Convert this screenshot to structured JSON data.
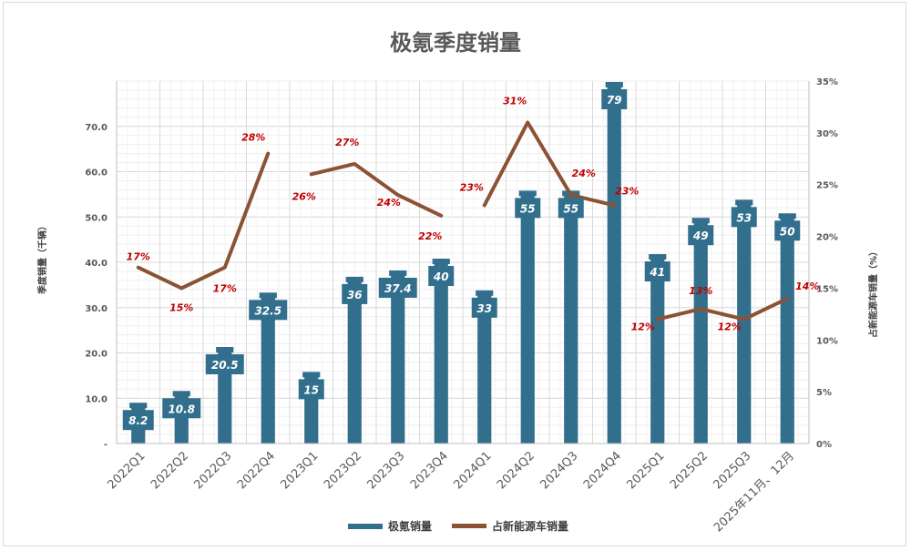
{
  "chart_data": {
    "type": "bar",
    "title": "极氪季度销量",
    "categories": [
      "2022Q1",
      "2022Q2",
      "2022Q3",
      "2022Q4",
      "2023Q1",
      "2023Q2",
      "2023Q3",
      "2023Q4",
      "2024Q1",
      "2024Q2",
      "2024Q3",
      "2024Q4",
      "2025Q1",
      "2025Q2",
      "2025Q3",
      "2025年11月、12月"
    ],
    "series": [
      {
        "name": "极氪销量",
        "type": "bar",
        "axis": "left",
        "color": "#326f8d",
        "values": [
          8.2,
          10.8,
          20.5,
          32.5,
          15,
          36,
          37.4,
          40,
          33,
          55,
          55,
          79,
          41,
          49,
          53,
          50
        ],
        "labels": [
          "8.2",
          "10.8",
          "20.5",
          "32.5",
          "15",
          "36",
          "37.4",
          "40",
          "33",
          "55",
          "55",
          "79",
          "41",
          "49",
          "53",
          "50"
        ]
      },
      {
        "name": "占新能源车销量",
        "type": "line",
        "axis": "right",
        "color": "#8b5234",
        "values": [
          17,
          15,
          17,
          28,
          26,
          27,
          24,
          22,
          23,
          31,
          24,
          23,
          12,
          13,
          12,
          14
        ],
        "labels": [
          "17%",
          "15%",
          "17%",
          "28%",
          "26%",
          "27%",
          "24%",
          "22%",
          "23%",
          "31%",
          "24%",
          "23%",
          "12%",
          "13%",
          "12%",
          "14%"
        ],
        "segments": [
          [
            0,
            3
          ],
          [
            4,
            7
          ],
          [
            8,
            11
          ],
          [
            12,
            15
          ]
        ]
      }
    ],
    "ylabel": "季度销量（千辆）",
    "ylabel_right": "占新能源车销量（%）",
    "ylim": [
      0,
      80
    ],
    "ylim_right": [
      0,
      35
    ],
    "y_ticks": [
      "-",
      "10.0",
      "20.0",
      "30.0",
      "40.0",
      "50.0",
      "60.0",
      "70.0"
    ],
    "y_tick_values": [
      0,
      10,
      20,
      30,
      40,
      50,
      60,
      70
    ],
    "y_right_ticks": [
      "0%",
      "5%",
      "10%",
      "15%",
      "20%",
      "25%",
      "30%",
      "35%"
    ],
    "y_right_tick_values": [
      0,
      5,
      10,
      15,
      20,
      25,
      30,
      35
    ],
    "grid": true,
    "legend_position": "bottom"
  }
}
